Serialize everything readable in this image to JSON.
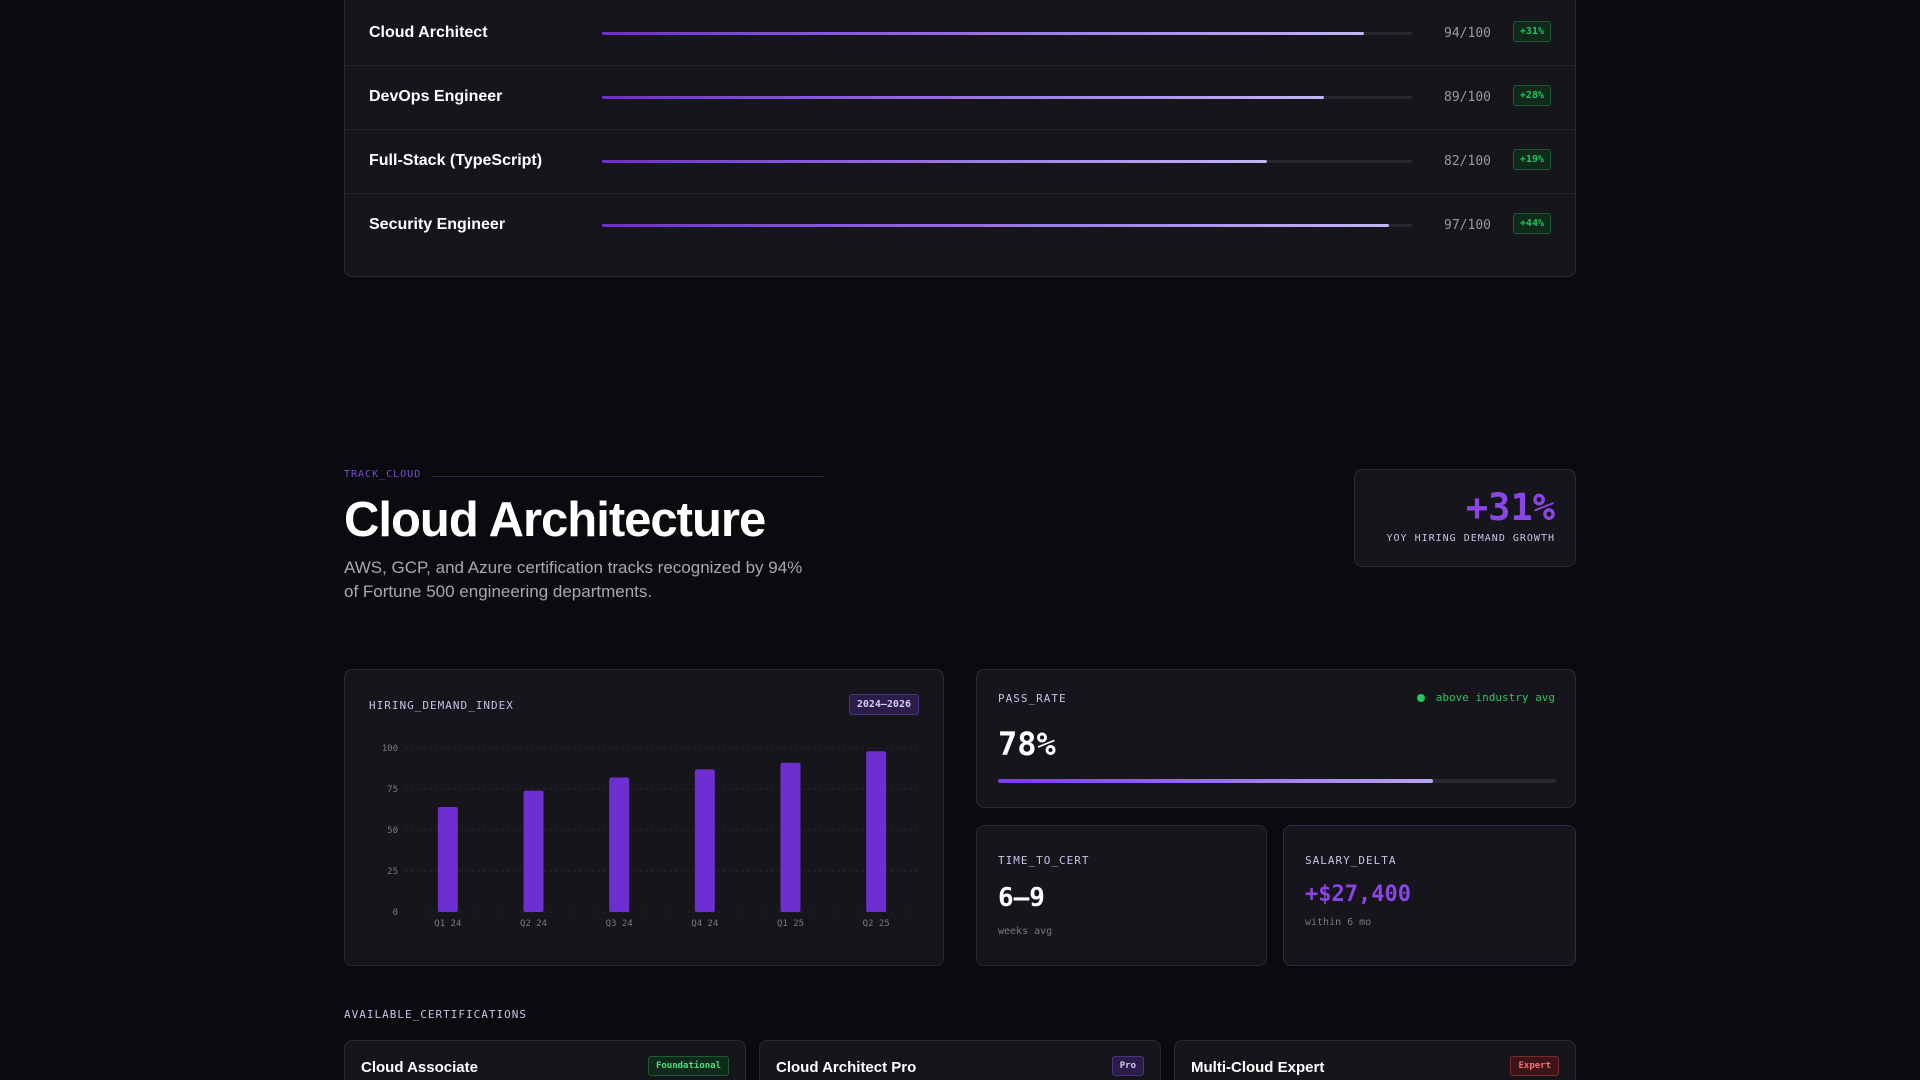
{
  "skills": [
    {
      "name": "Cloud Architect",
      "score": {
        "value": 94,
        "label": "94/100"
      },
      "growth": "+31%"
    },
    {
      "name": "DevOps Engineer",
      "score": {
        "value": 89,
        "label": "89/100"
      },
      "growth": "+28%"
    },
    {
      "name": "Full-Stack (TypeScript)",
      "score": {
        "value": 82,
        "label": "82/100"
      },
      "growth": "+19%"
    },
    {
      "name": "Security Engineer",
      "score": {
        "value": 97,
        "label": "97/100"
      },
      "growth": "+44%"
    }
  ],
  "track": {
    "eyebrow": "TRACK_CLOUD",
    "title": "Cloud Architecture",
    "description": "AWS, GCP, and Azure certification tracks recognized by 94% of Fortune 500 engineering departments.",
    "stat": "+31%",
    "stat_label": "YOY HIRING DEMAND GROWTH"
  },
  "chart_data": {
    "type": "bar",
    "title": "HIRING_DEMAND_INDEX",
    "badge": "2024–2026",
    "categories": [
      "Q1 24",
      "Q2 24",
      "Q3 24",
      "Q4 24",
      "Q1 25",
      "Q2 25"
    ],
    "values": [
      64,
      74,
      82,
      87,
      91,
      98
    ],
    "color": "#6d2fd1",
    "ylim": [
      0,
      100
    ],
    "yticks": [
      0,
      25,
      50,
      75,
      100
    ],
    "grid": true
  },
  "pass_rate": {
    "label": "PASS_RATE",
    "note": "above industry avg",
    "value": {
      "value": 78,
      "label": "78%"
    }
  },
  "time_to_cert": {
    "label": "TIME_TO_CERT",
    "value": "6–9",
    "unit": "weeks avg"
  },
  "salary_delta": {
    "label": "SALARY_DELTA",
    "value": "+$27,400",
    "note": "within 6 mo"
  },
  "certifications": {
    "title": "AVAILABLE_CERTIFICATIONS",
    "items": [
      {
        "name": "Cloud Associate",
        "level": "Foundational"
      },
      {
        "name": "Cloud Architect Pro",
        "level": "Pro"
      },
      {
        "name": "Multi-Cloud Expert",
        "level": "Expert"
      }
    ]
  }
}
